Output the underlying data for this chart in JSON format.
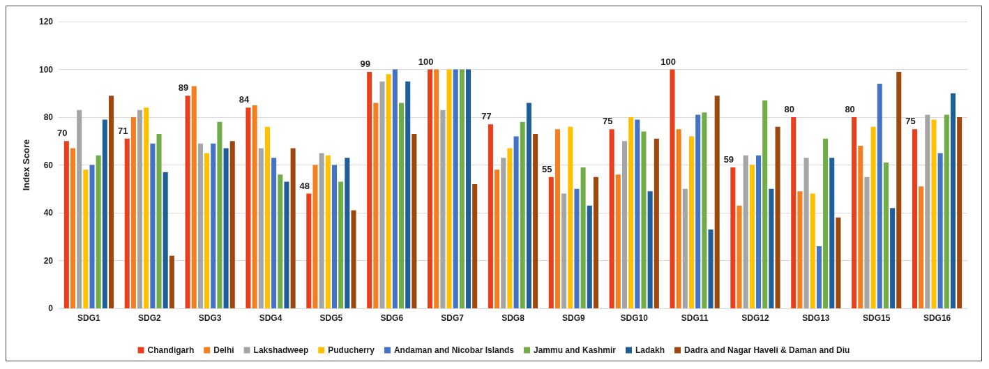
{
  "chart_data": {
    "type": "bar",
    "ylabel": "Index Score",
    "categories": [
      "SDG1",
      "SDG2",
      "SDG3",
      "SDG4",
      "SDG5",
      "SDG6",
      "SDG7",
      "SDG8",
      "SDG9",
      "SDG10",
      "SDG11",
      "SDG12",
      "SDG13",
      "SDG15",
      "SDG16"
    ],
    "ylim": [
      0,
      120
    ],
    "yticks": [
      0,
      20,
      40,
      60,
      80,
      100,
      120
    ],
    "grid": "y",
    "legend": "bottom",
    "series": [
      {
        "name": "Chandigarh",
        "color": "#e8401c",
        "values": [
          70,
          71,
          89,
          84,
          48,
          99,
          100,
          77,
          55,
          75,
          100,
          59,
          80,
          80,
          75
        ],
        "value_labels": [
          "70",
          "71",
          "89",
          "84",
          "48",
          "99",
          "100",
          "77",
          "55",
          "75",
          "100",
          "59",
          "80",
          "80",
          "75"
        ]
      },
      {
        "name": "Delhi",
        "color": "#f47f20",
        "values": [
          67,
          80,
          93,
          85,
          60,
          86,
          100,
          58,
          75,
          56,
          75,
          43,
          49,
          68,
          51
        ]
      },
      {
        "name": "Lakshadweep",
        "color": "#a5a5a5",
        "values": [
          83,
          83,
          69,
          67,
          65,
          95,
          83,
          63,
          48,
          70,
          50,
          64,
          63,
          55,
          81
        ]
      },
      {
        "name": "Puducherry",
        "color": "#ffc000",
        "values": [
          58,
          84,
          65,
          76,
          64,
          98,
          100,
          67,
          76,
          80,
          72,
          60,
          48,
          76,
          79
        ]
      },
      {
        "name": "Andaman and Nicobar Islands",
        "color": "#4472c4",
        "values": [
          60,
          69,
          69,
          63,
          60,
          100,
          100,
          72,
          50,
          79,
          81,
          64,
          26,
          94,
          65
        ]
      },
      {
        "name": "Jammu and Kashmir",
        "color": "#70ad47",
        "values": [
          64,
          73,
          78,
          56,
          53,
          86,
          100,
          78,
          59,
          74,
          82,
          87,
          71,
          61,
          81
        ]
      },
      {
        "name": "Ladakh",
        "color": "#1f5f99",
        "values": [
          79,
          57,
          67,
          53,
          63,
          95,
          100,
          86,
          43,
          49,
          33,
          50,
          63,
          42,
          90
        ]
      },
      {
        "name": "Dadra and Nagar Haveli & Daman and Diu",
        "color": "#9e480e",
        "values": [
          89,
          22,
          70,
          67,
          41,
          73,
          52,
          73,
          55,
          71,
          89,
          76,
          38,
          99,
          80
        ]
      }
    ]
  }
}
